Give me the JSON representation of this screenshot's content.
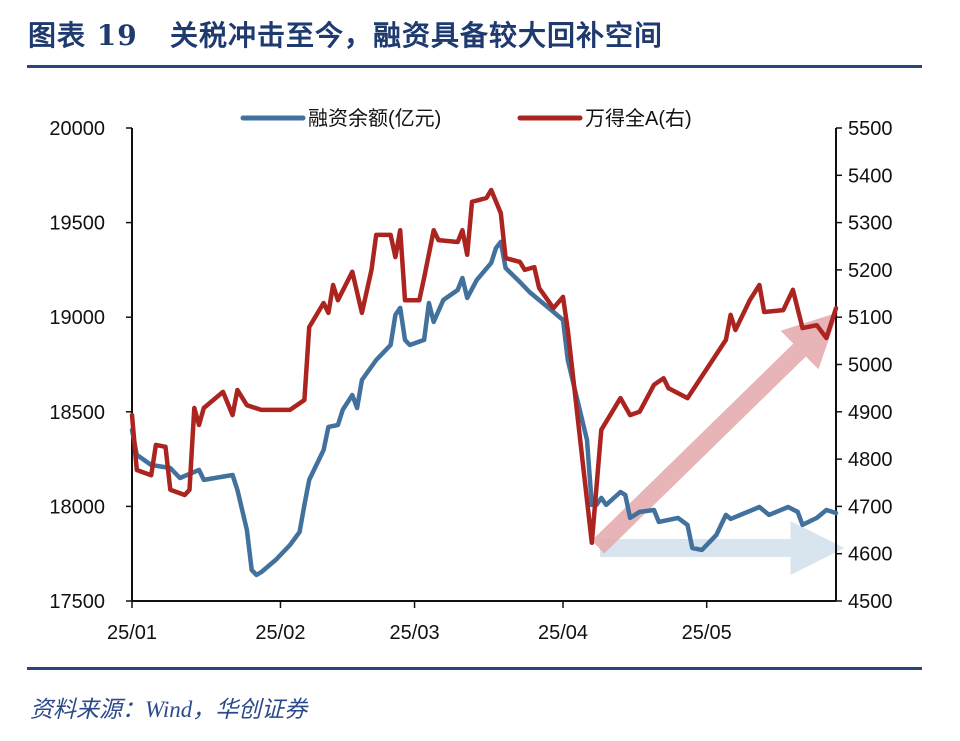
{
  "header": {
    "title": "图表 19   关税冲击至今，融资具备较大回补空间"
  },
  "footer": {
    "source": "资料来源：Wind，华创证券"
  },
  "chart_data": {
    "type": "line",
    "title": "图表 19   关税冲击至今，融资具备较大回补空间",
    "legend_position": "top",
    "grid": false,
    "x_ticks": [
      "25/01",
      "25/02",
      "25/03",
      "25/04",
      "25/05"
    ],
    "x_tick_dates": [
      "2025-01-01",
      "2025-02-01",
      "2025-03-01",
      "2025-04-01",
      "2025-05-01"
    ],
    "x_range": [
      "2025-01-01",
      "2025-05-28"
    ],
    "y_left": {
      "range": [
        17500,
        20000
      ],
      "ticks": [
        17500,
        18000,
        18500,
        19000,
        19500,
        20000
      ]
    },
    "y_right": {
      "range": [
        4500,
        5500
      ],
      "ticks": [
        4500,
        4600,
        4700,
        4800,
        4900,
        5000,
        5100,
        5200,
        5300,
        5400,
        5500
      ]
    },
    "series": [
      {
        "name": "融资余额(亿元)",
        "axis": "left",
        "color": "#41719c",
        "points": [
          [
            "2025-01-01",
            18404
          ],
          [
            "2025-01-02",
            18272
          ],
          [
            "2025-01-05",
            18219
          ],
          [
            "2025-01-09",
            18203
          ],
          [
            "2025-01-11",
            18150
          ],
          [
            "2025-01-15",
            18193
          ],
          [
            "2025-01-16",
            18140
          ],
          [
            "2025-01-22",
            18166
          ],
          [
            "2025-01-23",
            18087
          ],
          [
            "2025-01-25",
            17875
          ],
          [
            "2025-01-26",
            17664
          ],
          [
            "2025-01-27",
            17638
          ],
          [
            "2025-01-28",
            17653
          ],
          [
            "2025-01-31",
            17717
          ],
          [
            "2025-02-03",
            17796
          ],
          [
            "2025-02-05",
            17865
          ],
          [
            "2025-02-06",
            18008
          ],
          [
            "2025-02-07",
            18140
          ],
          [
            "2025-02-10",
            18298
          ],
          [
            "2025-02-11",
            18420
          ],
          [
            "2025-02-13",
            18430
          ],
          [
            "2025-02-14",
            18510
          ],
          [
            "2025-02-16",
            18589
          ],
          [
            "2025-02-17",
            18520
          ],
          [
            "2025-02-18",
            18668
          ],
          [
            "2025-02-21",
            18774
          ],
          [
            "2025-02-24",
            18853
          ],
          [
            "2025-02-25",
            19012
          ],
          [
            "2025-02-26",
            19049
          ],
          [
            "2025-02-27",
            18880
          ],
          [
            "2025-02-28",
            18853
          ],
          [
            "2025-03-03",
            18880
          ],
          [
            "2025-03-04",
            19075
          ],
          [
            "2025-03-05",
            18975
          ],
          [
            "2025-03-07",
            19091
          ],
          [
            "2025-03-10",
            19144
          ],
          [
            "2025-03-11",
            19207
          ],
          [
            "2025-03-12",
            19102
          ],
          [
            "2025-03-14",
            19197
          ],
          [
            "2025-03-17",
            19287
          ],
          [
            "2025-03-18",
            19366
          ],
          [
            "2025-03-19",
            19398
          ],
          [
            "2025-03-20",
            19260
          ],
          [
            "2025-03-23",
            19186
          ],
          [
            "2025-03-25",
            19133
          ],
          [
            "2025-03-27",
            19091
          ],
          [
            "2025-03-29",
            19049
          ],
          [
            "2025-04-01",
            18985
          ],
          [
            "2025-04-02",
            18774
          ],
          [
            "2025-04-04",
            18562
          ],
          [
            "2025-04-06",
            18351
          ],
          [
            "2025-04-07",
            18008
          ],
          [
            "2025-04-08",
            18008
          ],
          [
            "2025-04-09",
            18045
          ],
          [
            "2025-04-10",
            18008
          ],
          [
            "2025-04-13",
            18076
          ],
          [
            "2025-04-14",
            18060
          ],
          [
            "2025-04-15",
            17939
          ],
          [
            "2025-04-17",
            17971
          ],
          [
            "2025-04-20",
            17981
          ],
          [
            "2025-04-21",
            17918
          ],
          [
            "2025-04-25",
            17939
          ],
          [
            "2025-04-27",
            17902
          ],
          [
            "2025-04-28",
            17780
          ],
          [
            "2025-04-30",
            17770
          ],
          [
            "2025-05-03",
            17849
          ],
          [
            "2025-05-05",
            17955
          ],
          [
            "2025-05-06",
            17934
          ],
          [
            "2025-05-09",
            17965
          ],
          [
            "2025-05-12",
            17997
          ],
          [
            "2025-05-14",
            17955
          ],
          [
            "2025-05-18",
            17997
          ],
          [
            "2025-05-20",
            17971
          ],
          [
            "2025-05-21",
            17902
          ],
          [
            "2025-05-24",
            17939
          ],
          [
            "2025-05-26",
            17981
          ],
          [
            "2025-05-28",
            17965
          ]
        ]
      },
      {
        "name": "万得全A(右)",
        "axis": "right",
        "color": "#ac2420",
        "points": [
          [
            "2025-01-01",
            4893
          ],
          [
            "2025-01-02",
            4777
          ],
          [
            "2025-01-05",
            4766
          ],
          [
            "2025-01-06",
            4830
          ],
          [
            "2025-01-08",
            4826
          ],
          [
            "2025-01-09",
            4735
          ],
          [
            "2025-01-12",
            4724
          ],
          [
            "2025-01-13",
            4735
          ],
          [
            "2025-01-14",
            4908
          ],
          [
            "2025-01-15",
            4872
          ],
          [
            "2025-01-16",
            4908
          ],
          [
            "2025-01-20",
            4942
          ],
          [
            "2025-01-22",
            4893
          ],
          [
            "2025-01-23",
            4946
          ],
          [
            "2025-01-25",
            4914
          ],
          [
            "2025-01-28",
            4904
          ],
          [
            "2025-02-03",
            4904
          ],
          [
            "2025-02-06",
            4925
          ],
          [
            "2025-02-07",
            5079
          ],
          [
            "2025-02-10",
            5130
          ],
          [
            "2025-02-11",
            5109
          ],
          [
            "2025-02-12",
            5168
          ],
          [
            "2025-02-13",
            5136
          ],
          [
            "2025-02-16",
            5196
          ],
          [
            "2025-02-18",
            5109
          ],
          [
            "2025-02-20",
            5200
          ],
          [
            "2025-02-21",
            5274
          ],
          [
            "2025-02-24",
            5274
          ],
          [
            "2025-02-25",
            5227
          ],
          [
            "2025-02-26",
            5284
          ],
          [
            "2025-02-27",
            5136
          ],
          [
            "2025-03-02",
            5136
          ],
          [
            "2025-03-03",
            5183
          ],
          [
            "2025-03-05",
            5284
          ],
          [
            "2025-03-06",
            5263
          ],
          [
            "2025-03-10",
            5259
          ],
          [
            "2025-03-11",
            5284
          ],
          [
            "2025-03-12",
            5232
          ],
          [
            "2025-03-13",
            5344
          ],
          [
            "2025-03-16",
            5352
          ],
          [
            "2025-03-17",
            5369
          ],
          [
            "2025-03-19",
            5320
          ],
          [
            "2025-03-20",
            5225
          ],
          [
            "2025-03-23",
            5217
          ],
          [
            "2025-03-24",
            5200
          ],
          [
            "2025-03-26",
            5206
          ],
          [
            "2025-03-27",
            5162
          ],
          [
            "2025-03-30",
            5119
          ],
          [
            "2025-04-01",
            5143
          ],
          [
            "2025-04-02",
            5073
          ],
          [
            "2025-04-07",
            4623
          ],
          [
            "2025-04-09",
            4862
          ],
          [
            "2025-04-13",
            4929
          ],
          [
            "2025-04-15",
            4893
          ],
          [
            "2025-04-17",
            4900
          ],
          [
            "2025-04-20",
            4957
          ],
          [
            "2025-04-22",
            4971
          ],
          [
            "2025-04-23",
            4950
          ],
          [
            "2025-04-27",
            4929
          ],
          [
            "2025-05-05",
            5052
          ],
          [
            "2025-05-06",
            5105
          ],
          [
            "2025-05-07",
            5073
          ],
          [
            "2025-05-10",
            5136
          ],
          [
            "2025-05-12",
            5168
          ],
          [
            "2025-05-13",
            5111
          ],
          [
            "2025-05-17",
            5115
          ],
          [
            "2025-05-19",
            5158
          ],
          [
            "2025-05-21",
            5077
          ],
          [
            "2025-05-24",
            5083
          ],
          [
            "2025-05-26",
            5056
          ],
          [
            "2025-05-28",
            5119
          ]
        ]
      }
    ],
    "annotations": [
      {
        "kind": "arrow",
        "color": "#e3a9ab",
        "direction": "up-right"
      },
      {
        "kind": "arrow",
        "color": "#d6e4ee",
        "direction": "right"
      }
    ]
  }
}
